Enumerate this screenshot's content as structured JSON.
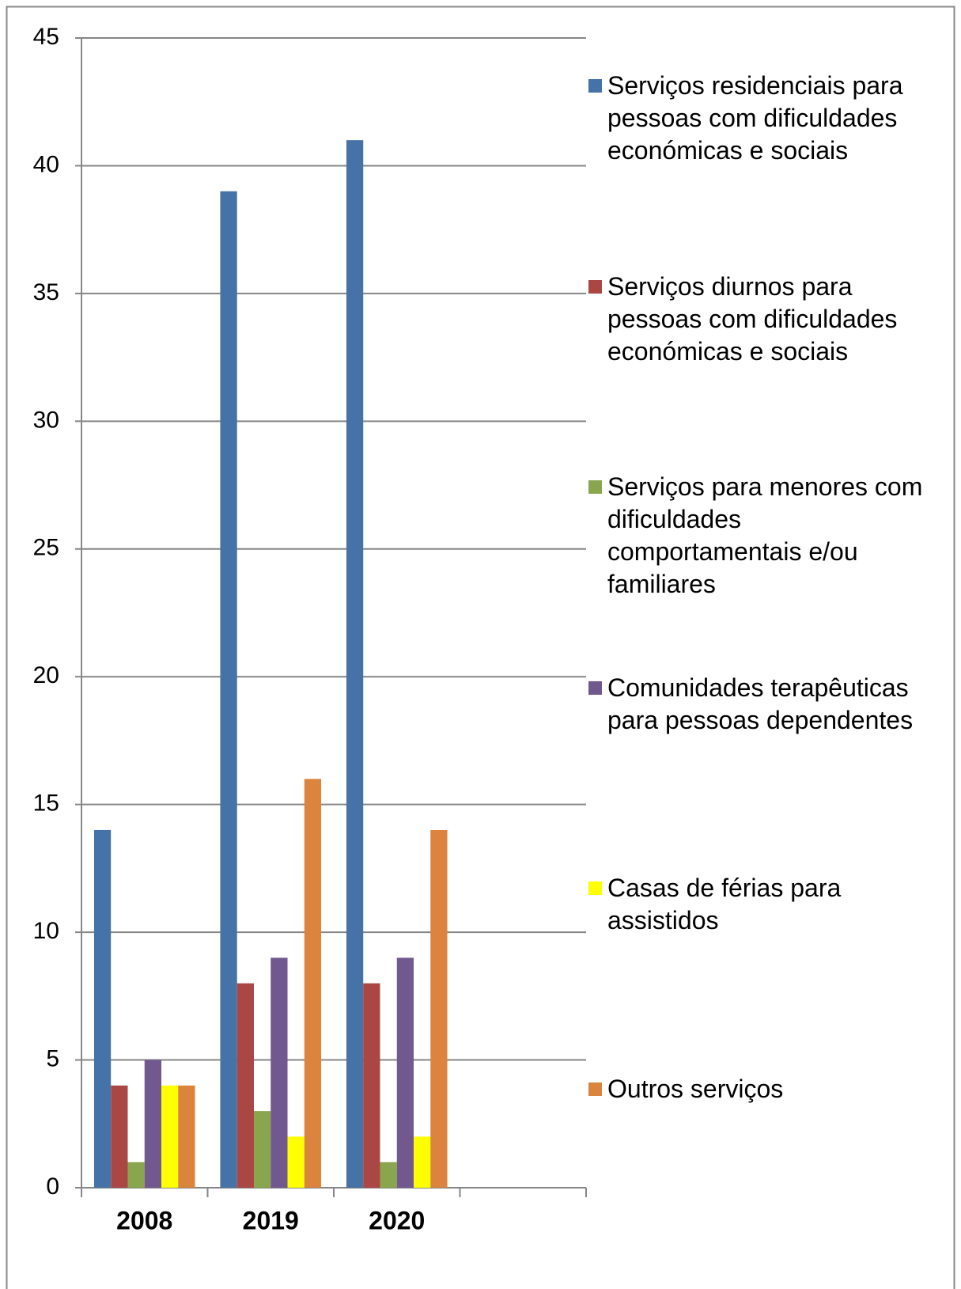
{
  "chart_data": {
    "type": "bar",
    "categories": [
      "2008",
      "2019",
      "2020",
      null
    ],
    "series": [
      {
        "name": "Serviços residenciais para pessoas com dificuldades económicas e sociais",
        "color": "#4572a7",
        "values": [
          14,
          39,
          41,
          null
        ]
      },
      {
        "name": "Serviços diurnos para pessoas com dificuldades económicas e sociais",
        "color": "#aa4643",
        "values": [
          4,
          8,
          8,
          null
        ]
      },
      {
        "name": "Serviços para menores com dificuldades comportamentais e/ou familiares",
        "color": "#89a54e",
        "values": [
          1,
          3,
          1,
          null
        ]
      },
      {
        "name": "Comunidades terapêuticas para pessoas dependentes",
        "color": "#71588f",
        "values": [
          5,
          9,
          9,
          null
        ]
      },
      {
        "name": "Casas de férias para assistidos",
        "color": "#ffff00",
        "values": [
          4,
          2,
          2,
          null
        ]
      },
      {
        "name": "Outros serviços",
        "color": "#db843d",
        "values": [
          4,
          16,
          14,
          null
        ]
      }
    ],
    "ylim": [
      0,
      45
    ],
    "yticks": [
      0,
      5,
      10,
      15,
      20,
      25,
      30,
      35,
      40,
      45
    ],
    "grid": true,
    "legend": "right"
  }
}
